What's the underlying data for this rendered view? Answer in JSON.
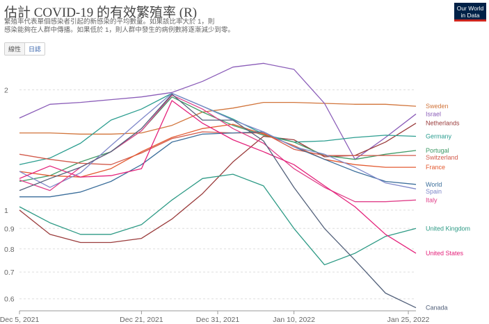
{
  "header": {
    "title": "估計 COVID-19 的有效繁殖率 (R)",
    "subtitle_line1": "繁殖率代表單個感染者引起的新感染的平均數量。如果該比率大於 1，則",
    "subtitle_line2": "感染能夠在人群中傳播。如果低於 1，則人群中發生的病例數將逐漸減少到零。",
    "logo_line1": "Our World",
    "logo_line2": "in Data"
  },
  "toggle": {
    "linear_label": "線性",
    "log_label": "日誌",
    "selected": "log"
  },
  "chart_data": {
    "type": "line",
    "x_axis": {
      "type": "date",
      "ticks": [
        "Dec 5, 2021",
        "Dec 21, 2021",
        "Dec 31, 2021",
        "Jan 10, 2022",
        "Jan 25, 2022"
      ]
    },
    "y_axis": {
      "scale": "log",
      "ticks": [
        0.6,
        0.7,
        0.8,
        0.9,
        1,
        2
      ],
      "range": [
        0.56,
        2.25
      ]
    },
    "grid": "horizontal",
    "legend": "line-end labels at right",
    "x": [
      "2021-12-05",
      "2021-12-09",
      "2021-12-13",
      "2021-12-17",
      "2021-12-21",
      "2021-12-25",
      "2021-12-29",
      "2022-01-02",
      "2022-01-06",
      "2022-01-10",
      "2022-01-14",
      "2022-01-18",
      "2022-01-22",
      "2022-01-26"
    ],
    "series": [
      {
        "name": "Sweden",
        "color": "#d1743a",
        "values": [
          1.56,
          1.56,
          1.55,
          1.55,
          1.56,
          1.63,
          1.76,
          1.8,
          1.86,
          1.86,
          1.85,
          1.84,
          1.84,
          1.82
        ]
      },
      {
        "name": "Israel",
        "color": "#8a5cb8",
        "values": [
          1.7,
          1.84,
          1.86,
          1.89,
          1.92,
          1.97,
          2.1,
          2.28,
          2.33,
          2.25,
          1.85,
          1.34,
          1.52,
          1.74
        ]
      },
      {
        "name": "Netherlands",
        "color": "#9a3b3b",
        "values": [
          1.0,
          0.87,
          0.83,
          0.83,
          0.85,
          0.95,
          1.1,
          1.32,
          1.53,
          1.5,
          1.36,
          1.37,
          1.48,
          1.65
        ]
      },
      {
        "name": "Germany",
        "color": "#2a9d8f",
        "values": [
          1.3,
          1.35,
          1.47,
          1.68,
          1.79,
          1.96,
          1.82,
          1.69,
          1.55,
          1.48,
          1.49,
          1.52,
          1.54,
          1.53
        ]
      },
      {
        "name": "Portugal",
        "color": "#3f9a66",
        "values": [
          1.18,
          1.22,
          1.32,
          1.4,
          1.58,
          1.92,
          1.76,
          1.63,
          1.54,
          1.48,
          1.37,
          1.34,
          1.38,
          1.41
        ]
      },
      {
        "name": "Switzerland",
        "color": "#d25a4b",
        "values": [
          1.38,
          1.34,
          1.31,
          1.3,
          1.39,
          1.51,
          1.57,
          1.56,
          1.56,
          1.42,
          1.37,
          1.37,
          1.37,
          1.37
        ]
      },
      {
        "name": "France",
        "color": "#e35a30",
        "values": [
          1.25,
          1.22,
          1.21,
          1.27,
          1.4,
          1.52,
          1.6,
          1.64,
          1.55,
          1.45,
          1.34,
          1.3,
          1.28,
          1.28
        ]
      },
      {
        "name": "World",
        "color": "#3b6e9b",
        "values": [
          1.08,
          1.08,
          1.11,
          1.18,
          1.3,
          1.48,
          1.55,
          1.56,
          1.57,
          1.44,
          1.34,
          1.25,
          1.18,
          1.16
        ]
      },
      {
        "name": "Spain",
        "color": "#7e87c9",
        "values": [
          1.25,
          1.14,
          1.24,
          1.45,
          1.69,
          1.96,
          1.82,
          1.68,
          1.57,
          1.44,
          1.38,
          1.28,
          1.17,
          1.13
        ]
      },
      {
        "name": "Italy",
        "color": "#e0408a",
        "values": [
          1.19,
          1.12,
          1.28,
          1.4,
          1.58,
          1.94,
          1.79,
          1.6,
          1.47,
          1.27,
          1.14,
          1.05,
          1.05,
          1.06
        ]
      },
      {
        "name": "United Kingdom",
        "color": "#2d9a85",
        "values": [
          1.02,
          0.93,
          0.87,
          0.87,
          0.92,
          1.06,
          1.2,
          1.23,
          1.15,
          0.9,
          0.73,
          0.78,
          0.86,
          0.9
        ]
      },
      {
        "name": "United States",
        "color": "#e4217a",
        "values": [
          1.2,
          1.29,
          1.21,
          1.22,
          1.27,
          1.88,
          1.65,
          1.5,
          1.4,
          1.3,
          1.15,
          1.02,
          0.87,
          0.78
        ]
      },
      {
        "name": "Canada",
        "color": "#52607a",
        "values": [
          1.12,
          1.2,
          1.28,
          1.4,
          1.6,
          1.95,
          1.68,
          1.68,
          1.49,
          1.14,
          0.9,
          0.75,
          0.62,
          0.57
        ]
      }
    ]
  }
}
